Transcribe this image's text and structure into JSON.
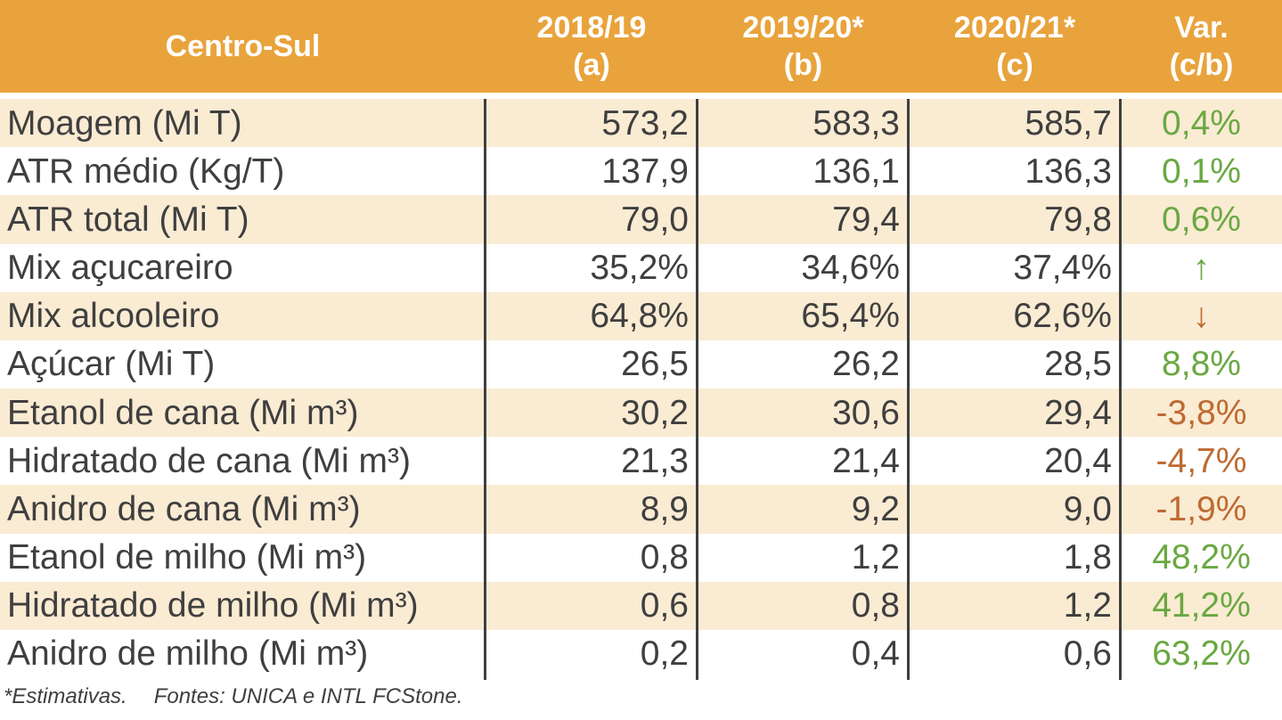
{
  "table": {
    "title": "Centro-Sul",
    "columns": [
      {
        "line1": "2018/19",
        "line2": "(a)"
      },
      {
        "line1": "2019/20*",
        "line2": "(b)"
      },
      {
        "line1": "2020/21*",
        "line2": "(c)"
      },
      {
        "line1": "Var.",
        "line2": "(c/b)"
      }
    ],
    "rows": [
      {
        "label": "Moagem (Mi T)",
        "a": "573,2",
        "b": "583,3",
        "c": "585,7",
        "var": "0,4%",
        "var_style": "positive"
      },
      {
        "label": "ATR médio (Kg/T)",
        "a": "137,9",
        "b": "136,1",
        "c": "136,3",
        "var": "0,1%",
        "var_style": "positive"
      },
      {
        "label": "ATR total (Mi T)",
        "a": "79,0",
        "b": "79,4",
        "c": "79,8",
        "var": "0,6%",
        "var_style": "positive"
      },
      {
        "label": "Mix açucareiro",
        "a": "35,2%",
        "b": "34,6%",
        "c": "37,4%",
        "var": "↑",
        "var_style": "up"
      },
      {
        "label": "Mix alcooleiro",
        "a": "64,8%",
        "b": "65,4%",
        "c": "62,6%",
        "var": "↓",
        "var_style": "down"
      },
      {
        "label": "Açúcar (Mi T)",
        "a": "26,5",
        "b": "26,2",
        "c": "28,5",
        "var": "8,8%",
        "var_style": "positive"
      },
      {
        "label": "Etanol de cana (Mi m³)",
        "a": "30,2",
        "b": "30,6",
        "c": "29,4",
        "var": "-3,8%",
        "var_style": "negative"
      },
      {
        "label": "Hidratado de cana (Mi m³)",
        "a": "21,3",
        "b": "21,4",
        "c": "20,4",
        "var": "-4,7%",
        "var_style": "negative"
      },
      {
        "label": "Anidro de cana (Mi m³)",
        "a": "8,9",
        "b": "9,2",
        "c": "9,0",
        "var": "-1,9%",
        "var_style": "negative"
      },
      {
        "label": "Etanol de milho (Mi m³)",
        "a": "0,8",
        "b": "1,2",
        "c": "1,8",
        "var": "48,2%",
        "var_style": "positive"
      },
      {
        "label": "Hidratado de milho (Mi m³)",
        "a": "0,6",
        "b": "0,8",
        "c": "1,2",
        "var": "41,2%",
        "var_style": "positive"
      },
      {
        "label": "Anidro de milho (Mi m³)",
        "a": "0,2",
        "b": "0,4",
        "c": "0,6",
        "var": "63,2%",
        "var_style": "positive"
      }
    ]
  },
  "footer": {
    "estimates_note": "*Estimativas.",
    "sources_note": "Fontes: UNICA e INTL FCStone."
  },
  "colors": {
    "header_bg": "#E9A33C",
    "stripe": "#FAEBD3",
    "text": "#3F3F3F",
    "positive": "#6AA842",
    "negative": "#BE6A31"
  },
  "chart_data": {
    "type": "table",
    "title": "Centro-Sul",
    "columns": [
      "Centro-Sul",
      "2018/19 (a)",
      "2019/20* (b)",
      "2020/21* (c)",
      "Var. (c/b)"
    ],
    "rows": [
      [
        "Moagem (Mi T)",
        573.2,
        583.3,
        585.7,
        "0,4%"
      ],
      [
        "ATR médio (Kg/T)",
        137.9,
        136.1,
        136.3,
        "0,1%"
      ],
      [
        "ATR total (Mi T)",
        79.0,
        79.4,
        79.8,
        "0,6%"
      ],
      [
        "Mix açucareiro",
        "35,2%",
        "34,6%",
        "37,4%",
        "↑"
      ],
      [
        "Mix alcooleiro",
        "64,8%",
        "65,4%",
        "62,6%",
        "↓"
      ],
      [
        "Açúcar (Mi T)",
        26.5,
        26.2,
        28.5,
        "8,8%"
      ],
      [
        "Etanol de cana (Mi m³)",
        30.2,
        30.6,
        29.4,
        "-3,8%"
      ],
      [
        "Hidratado de cana (Mi m³)",
        21.3,
        21.4,
        20.4,
        "-4,7%"
      ],
      [
        "Anidro de cana (Mi m³)",
        8.9,
        9.2,
        9.0,
        "-1,9%"
      ],
      [
        "Etanol de milho (Mi m³)",
        0.8,
        1.2,
        1.8,
        "48,2%"
      ],
      [
        "Hidratado de milho (Mi m³)",
        0.6,
        0.8,
        1.2,
        "41,2%"
      ],
      [
        "Anidro de milho (Mi m³)",
        0.2,
        0.4,
        0.6,
        "63,2%"
      ]
    ],
    "footnote": "*Estimativas.   Fontes: UNICA e INTL FCStone.",
    "layout": {
      "striped_rows": true,
      "column_dividers": true,
      "value_alignment": "right",
      "variation_alignment": "center"
    }
  }
}
